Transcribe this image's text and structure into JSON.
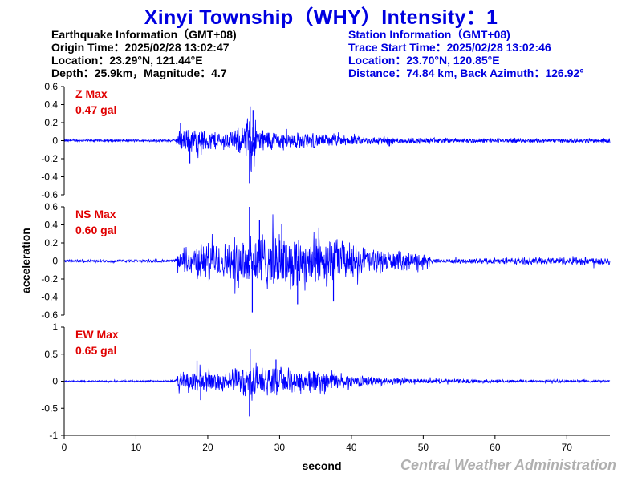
{
  "title": "Xinyi Township（WHY）Intensity：1",
  "earthquake": {
    "heading": "Earthquake Information（GMT+08)",
    "origin_time": "Origin Time：2025/02/28 13:02:47",
    "location": "Location：23.29°N, 121.44°E",
    "depth_magnitude": "Depth：25.9km，Magnitude：4.7"
  },
  "station": {
    "heading": "Station Information（GMT+08)",
    "trace_start": "Trace Start Time：2025/02/28 13:02:46",
    "location": "Location：23.70°N, 120.85°E",
    "distance": "Distance：74.84 km, Back Azimuth：126.92°"
  },
  "footer": "Central Weather Administration",
  "chart_data": {
    "type": "line",
    "xlabel": "second",
    "ylabel": "acceleration",
    "xlim": [
      0,
      76
    ],
    "xticks": [
      0,
      10,
      20,
      30,
      40,
      50,
      60,
      70
    ],
    "line_color": "#0000ff",
    "label_color": "#e00000",
    "series": [
      {
        "name": "Z Max",
        "peak": "0.47 gal",
        "ylim": [
          -0.6,
          0.6
        ],
        "yticks": [
          0.6,
          0.4,
          0.2,
          0,
          -0.2,
          -0.4,
          -0.6
        ],
        "ytick_labels": [
          "0.6",
          "0.4",
          "0.2",
          "0",
          "-0.2",
          "-0.4",
          "-0.6"
        ],
        "noise": 0.012,
        "envelope": [
          [
            0,
            0.012
          ],
          [
            15.5,
            0.012
          ],
          [
            16,
            0.1
          ],
          [
            18,
            0.13
          ],
          [
            20,
            0.1
          ],
          [
            23,
            0.09
          ],
          [
            25,
            0.14
          ],
          [
            26,
            0.28
          ],
          [
            27.5,
            0.12
          ],
          [
            30,
            0.09
          ],
          [
            35,
            0.07
          ],
          [
            40,
            0.045
          ],
          [
            50,
            0.03
          ],
          [
            60,
            0.022
          ],
          [
            70,
            0.02
          ],
          [
            76,
            0.025
          ]
        ],
        "spikes": [
          [
            25.8,
            -0.47
          ],
          [
            25.9,
            0.38
          ],
          [
            26.3,
            0.34
          ],
          [
            16.2,
            0.2
          ],
          [
            17.5,
            -0.25
          ]
        ]
      },
      {
        "name": "NS Max",
        "peak": "0.60 gal",
        "ylim": [
          -0.6,
          0.6
        ],
        "yticks": [
          0.6,
          0.4,
          0.2,
          0,
          -0.2,
          -0.4,
          -0.6
        ],
        "ytick_labels": [
          "0.6",
          "0.4",
          "0.2",
          "0",
          "-0.2",
          "-0.4",
          "-0.6"
        ],
        "noise": 0.012,
        "envelope": [
          [
            0,
            0.012
          ],
          [
            15.5,
            0.015
          ],
          [
            16,
            0.1
          ],
          [
            18,
            0.16
          ],
          [
            20,
            0.19
          ],
          [
            23,
            0.18
          ],
          [
            25,
            0.3
          ],
          [
            27,
            0.3
          ],
          [
            30,
            0.26
          ],
          [
            33,
            0.28
          ],
          [
            37,
            0.24
          ],
          [
            40,
            0.17
          ],
          [
            45,
            0.1
          ],
          [
            50,
            0.08
          ],
          [
            51.5,
            0.02
          ],
          [
            60,
            0.03
          ],
          [
            70,
            0.04
          ],
          [
            76,
            0.045
          ]
        ],
        "spikes": [
          [
            25.8,
            0.6
          ],
          [
            26.2,
            -0.57
          ],
          [
            32.5,
            -0.48
          ],
          [
            37.5,
            -0.45
          ],
          [
            27.2,
            0.45
          ],
          [
            30.3,
            0.41
          ]
        ]
      },
      {
        "name": "EW Max",
        "peak": "0.65 gal",
        "ylim": [
          -1,
          1
        ],
        "yticks": [
          1,
          0.5,
          0,
          -0.5,
          -1
        ],
        "ytick_labels": [
          "1",
          "0.5",
          "0",
          "-0.5",
          "-1"
        ],
        "noise": 0.012,
        "envelope": [
          [
            0,
            0.012
          ],
          [
            15.5,
            0.015
          ],
          [
            16,
            0.13
          ],
          [
            18,
            0.2
          ],
          [
            20,
            0.16
          ],
          [
            23,
            0.17
          ],
          [
            25,
            0.26
          ],
          [
            26.5,
            0.3
          ],
          [
            28,
            0.23
          ],
          [
            30,
            0.2
          ],
          [
            33,
            0.22
          ],
          [
            37,
            0.15
          ],
          [
            40,
            0.1
          ],
          [
            45,
            0.06
          ],
          [
            50,
            0.04
          ],
          [
            60,
            0.03
          ],
          [
            76,
            0.02
          ]
        ],
        "spikes": [
          [
            25.8,
            -0.65
          ],
          [
            25.9,
            0.6
          ],
          [
            18.5,
            0.38
          ],
          [
            19,
            -0.35
          ],
          [
            29.5,
            0.4
          ]
        ]
      }
    ]
  }
}
